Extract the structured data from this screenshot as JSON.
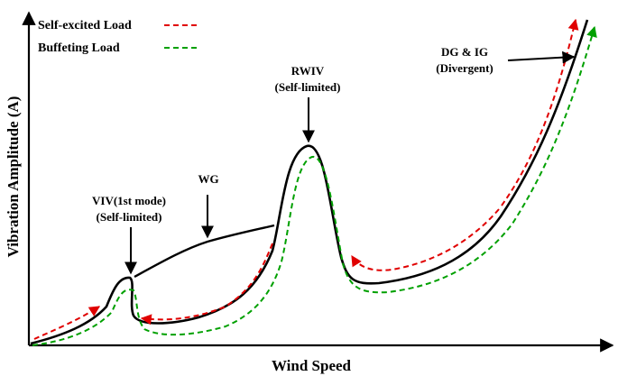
{
  "axes": {
    "x_label": "Wind Speed",
    "y_label": "Vibration Amplitude (A)"
  },
  "legend": {
    "items": [
      {
        "label": "Self-excited Load",
        "color": "#e00000",
        "style": "dashed"
      },
      {
        "label": "Buffeting Load",
        "color": "#00a000",
        "style": "dashed"
      }
    ]
  },
  "annotations": {
    "viv_line1": "VIV(1st mode)",
    "viv_line2": "(Self-limited)",
    "wg": "WG",
    "rwiv_line1": "RWIV",
    "rwiv_line2": "(Self-limited)",
    "dgig_line1": "DG & IG",
    "dgig_line2": "(Divergent)"
  },
  "colors": {
    "main_curve": "#000000",
    "self_excited": "#e00000",
    "buffeting": "#00a000"
  }
}
